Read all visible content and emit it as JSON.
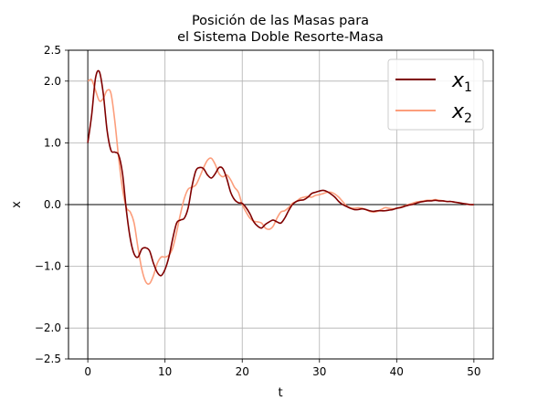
{
  "chart_data": {
    "type": "line",
    "title": [
      "Posición de las Masas para",
      "el Sistema Doble Resorte-Masa"
    ],
    "xlabel": "t",
    "ylabel": "x",
    "xlim": [
      -2.5,
      52.5
    ],
    "ylim": [
      -2.5,
      2.5
    ],
    "xticks": [
      0,
      10,
      20,
      30,
      40,
      50
    ],
    "yticks": [
      -2.5,
      -2.0,
      -1.0,
      0.0,
      1.0,
      2.0,
      2.5
    ],
    "ytick_labels": [
      "−2.5",
      "−2.0",
      "−1.0",
      "0.0",
      "1.0",
      "2.0",
      "2.5"
    ],
    "grid": true,
    "legend_position": "top-right",
    "series": [
      {
        "name": "x",
        "subscript": "1",
        "color": "#7f0000",
        "x": [
          0,
          0.5,
          1,
          1.5,
          2,
          2.5,
          3,
          3.5,
          4,
          4.5,
          5,
          5.5,
          6,
          6.5,
          7,
          7.5,
          8,
          8.5,
          9,
          9.5,
          10,
          10.5,
          11,
          11.5,
          12,
          12.5,
          13,
          13.5,
          14,
          14.5,
          15,
          15.5,
          16,
          16.5,
          17,
          17.5,
          18,
          18.5,
          19,
          19.5,
          20,
          20.5,
          21,
          21.5,
          22,
          22.5,
          23,
          23.5,
          24,
          24.5,
          25,
          25.5,
          26,
          26.5,
          27,
          27.5,
          28,
          28.5,
          29,
          29.5,
          30,
          30.5,
          31,
          31.5,
          32,
          32.5,
          33,
          33.5,
          34,
          34.5,
          35,
          35.5,
          36,
          36.5,
          37,
          37.5,
          38,
          38.5,
          39,
          39.5,
          40,
          40.5,
          41,
          41.5,
          42,
          42.5,
          43,
          43.5,
          44,
          44.5,
          45,
          45.5,
          46,
          46.5,
          47,
          47.5,
          48,
          48.5,
          49,
          49.5,
          50
        ],
        "y": [
          1.0,
          1.45,
          2.05,
          2.15,
          1.8,
          1.2,
          0.88,
          0.85,
          0.8,
          0.5,
          -0.1,
          -0.55,
          -0.8,
          -0.85,
          -0.72,
          -0.7,
          -0.75,
          -0.95,
          -1.1,
          -1.15,
          -1.05,
          -0.85,
          -0.55,
          -0.3,
          -0.25,
          -0.22,
          -0.05,
          0.3,
          0.55,
          0.6,
          0.58,
          0.48,
          0.43,
          0.5,
          0.6,
          0.58,
          0.42,
          0.2,
          0.08,
          0.03,
          0.02,
          -0.05,
          -0.15,
          -0.28,
          -0.35,
          -0.38,
          -0.32,
          -0.28,
          -0.25,
          -0.28,
          -0.3,
          -0.22,
          -0.1,
          0.0,
          0.05,
          0.07,
          0.08,
          0.12,
          0.18,
          0.2,
          0.22,
          0.23,
          0.21,
          0.17,
          0.12,
          0.05,
          0.0,
          -0.03,
          -0.06,
          -0.08,
          -0.08,
          -0.07,
          -0.08,
          -0.1,
          -0.11,
          -0.1,
          -0.1,
          -0.1,
          -0.09,
          -0.08,
          -0.06,
          -0.05,
          -0.03,
          -0.01,
          0.0,
          0.02,
          0.04,
          0.05,
          0.06,
          0.06,
          0.07,
          0.06,
          0.06,
          0.05,
          0.05,
          0.04,
          0.03,
          0.02,
          0.01,
          0.0,
          0.0
        ]
      },
      {
        "name": "x",
        "subscript": "2",
        "color": "#fc9e7c",
        "x": [
          0,
          0.5,
          1,
          1.5,
          2,
          2.5,
          3,
          3.5,
          4,
          4.5,
          5,
          5.5,
          6,
          6.5,
          7,
          7.5,
          8,
          8.5,
          9,
          9.5,
          10,
          10.5,
          11,
          11.5,
          12,
          12.5,
          13,
          13.5,
          14,
          14.5,
          15,
          15.5,
          16,
          16.5,
          17,
          17.5,
          18,
          18.5,
          19,
          19.5,
          20,
          20.5,
          21,
          21.5,
          22,
          22.5,
          23,
          23.5,
          24,
          24.5,
          25,
          25.5,
          26,
          26.5,
          27,
          27.5,
          28,
          28.5,
          29,
          29.5,
          30,
          30.5,
          31,
          31.5,
          32,
          32.5,
          33,
          33.5,
          34,
          34.5,
          35,
          35.5,
          36,
          36.5,
          37,
          37.5,
          38,
          38.5,
          39,
          39.5,
          40,
          40.5,
          41,
          41.5,
          42,
          42.5,
          43,
          43.5,
          44,
          44.5,
          45,
          45.5,
          46,
          46.5,
          47,
          47.5,
          48,
          48.5,
          49,
          49.5,
          50
        ],
        "y": [
          2.0,
          2.02,
          1.85,
          1.68,
          1.72,
          1.85,
          1.8,
          1.35,
          0.75,
          0.25,
          -0.05,
          -0.12,
          -0.3,
          -0.7,
          -1.05,
          -1.25,
          -1.28,
          -1.15,
          -0.95,
          -0.85,
          -0.85,
          -0.82,
          -0.7,
          -0.45,
          -0.15,
          0.1,
          0.25,
          0.28,
          0.32,
          0.45,
          0.6,
          0.72,
          0.75,
          0.65,
          0.5,
          0.45,
          0.48,
          0.4,
          0.28,
          0.2,
          0.0,
          -0.12,
          -0.22,
          -0.27,
          -0.28,
          -0.3,
          -0.38,
          -0.4,
          -0.35,
          -0.22,
          -0.12,
          -0.1,
          -0.05,
          0.02,
          0.05,
          0.1,
          0.12,
          0.13,
          0.12,
          0.15,
          0.16,
          0.18,
          0.2,
          0.2,
          0.17,
          0.12,
          0.05,
          -0.02,
          -0.05,
          -0.06,
          -0.05,
          -0.06,
          -0.08,
          -0.11,
          -0.12,
          -0.11,
          -0.08,
          -0.05,
          -0.06,
          -0.07,
          -0.06,
          -0.04,
          -0.02,
          0.0,
          0.02,
          0.04,
          0.05,
          0.06,
          0.07,
          0.07,
          0.08,
          0.07,
          0.06,
          0.05,
          0.05,
          0.04,
          0.03,
          0.02,
          0.01,
          0.0,
          0.0
        ]
      }
    ]
  }
}
